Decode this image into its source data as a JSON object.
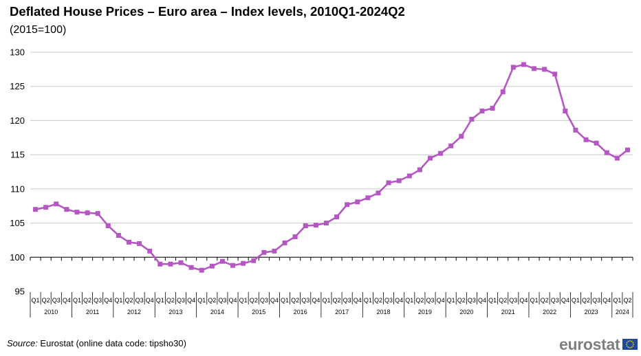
{
  "chart_data": {
    "type": "line",
    "title": "Deflated House Prices – Euro area – Index levels, 2010Q1-2024Q2",
    "subtitle": "(2015=100)",
    "ylim": [
      95,
      130
    ],
    "yticks": [
      95,
      100,
      105,
      110,
      115,
      120,
      125,
      130
    ],
    "grid": true,
    "color": "#b557c3",
    "quarter_labels": [
      "Q1",
      "Q2",
      "Q3",
      "Q4"
    ],
    "years": [
      "2010",
      "2011",
      "2012",
      "2013",
      "2014",
      "2015",
      "2016",
      "2017",
      "2018",
      "2019",
      "2020",
      "2021",
      "2022",
      "2023",
      "2024"
    ],
    "final_year_quarters": [
      "Q1",
      "Q2"
    ],
    "series": [
      {
        "values": [
          107.0,
          107.3,
          107.8,
          107.0,
          106.6,
          106.5,
          106.4,
          104.6,
          103.2,
          102.2,
          102.0,
          100.9,
          99.0,
          99.0,
          99.2,
          98.5,
          98.1,
          98.7,
          99.4,
          98.8,
          99.1,
          99.5,
          100.7,
          100.9,
          102.1,
          103.0,
          104.6,
          104.7,
          105.0,
          105.9,
          107.7,
          108.1,
          108.7,
          109.4,
          110.9,
          111.2,
          111.9,
          112.8,
          114.5,
          115.2,
          116.3,
          117.7,
          120.2,
          121.4,
          121.8,
          124.2,
          127.8,
          128.2,
          127.6,
          127.5,
          126.8,
          121.4,
          118.6,
          117.2,
          116.7,
          115.3,
          114.5,
          115.7
        ]
      }
    ]
  },
  "footer": {
    "source_label": "Source:",
    "source_text": " Eurostat (online data code: tipsho30)",
    "logo_text": "eurostat"
  },
  "icons": {
    "logo_flag": "eu-flag-icon"
  }
}
